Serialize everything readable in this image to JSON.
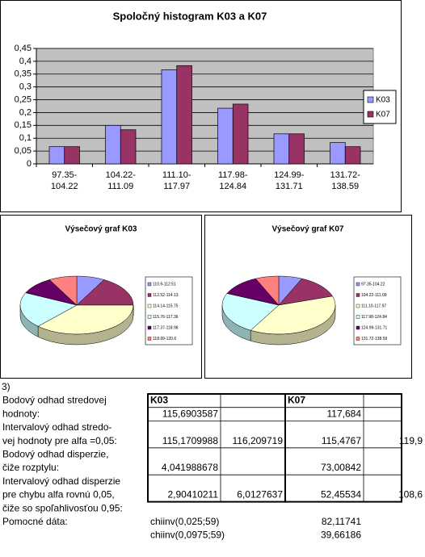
{
  "chart_data": [
    {
      "type": "bar",
      "title": "Spoločný histogram K03 a K07",
      "categories": [
        "97.35-104.22",
        "104.22-111.09",
        "111.10-117.97",
        "117.98-124.84",
        "124.99-131.71",
        "131.72-138.59"
      ],
      "series": [
        {
          "name": "K03",
          "color": "#9999ff",
          "values": [
            0.067,
            0.15,
            0.367,
            0.217,
            0.117,
            0.083
          ]
        },
        {
          "name": "K07",
          "color": "#993366",
          "values": [
            0.067,
            0.133,
            0.383,
            0.233,
            0.117,
            0.067
          ]
        }
      ],
      "ylim": [
        0,
        0.45
      ],
      "yticks": [
        0,
        {
          "value": 0.05,
          "label": "0,05"
        },
        {
          "value": 0.1,
          "label": "0,1"
        },
        {
          "value": 0.15,
          "label": "0,15"
        },
        {
          "value": 0.2,
          "label": "0,2"
        },
        {
          "value": 0.25,
          "label": "0,25"
        },
        {
          "value": 0.3,
          "label": "0,3"
        },
        {
          "value": 0.35,
          "label": "0,35"
        },
        {
          "value": 0.4,
          "label": "0,4"
        },
        {
          "value": 0.45,
          "label": "0,45"
        }
      ],
      "grid": true,
      "legend": "right",
      "plot_background": "#c0c0c0"
    },
    {
      "type": "pie",
      "title": "Výsečový graf K03",
      "categories": [
        "110.9-112.51",
        "112.52-114.13",
        "114.14-115.75",
        "115.76-117.36",
        "117.37-118.98",
        "118.99-120.6"
      ],
      "values": [
        8,
        17,
        37,
        20,
        10,
        8
      ],
      "colors": [
        "#9999ff",
        "#993366",
        "#ffffcc",
        "#ccffff",
        "#660066",
        "#ff8080"
      ],
      "legend": "right"
    },
    {
      "type": "pie",
      "title": "Výsečový graf K07",
      "categories": [
        "97.35-104.22",
        "104.22-111.09",
        "111.10-117.97",
        "117.98-124.84",
        "124.99-131.71",
        "131.72-138.59"
      ],
      "values": [
        6.7,
        13.3,
        38.3,
        23.3,
        11.7,
        6.7
      ],
      "colors": [
        "#9999ff",
        "#993366",
        "#ffffcc",
        "#ccffff",
        "#660066",
        "#ff8080"
      ],
      "legend": "right"
    }
  ],
  "sheet": {
    "label": "3)",
    "rows": [
      [
        "Bodový odhad stredovej",
        "K03",
        null,
        "K07",
        null
      ],
      [
        "hodnoty:",
        "115,6903587",
        null,
        "117,684",
        null
      ],
      [
        "Intervalový odhad stredo-",
        null,
        null,
        null,
        null
      ],
      [
        "vej hodnoty pre alfa =0,05:",
        "115,1709988",
        "116,209719",
        "115,4767",
        "119,9"
      ],
      [
        "Bodový odhad disperzie,",
        null,
        null,
        null,
        null
      ],
      [
        "čiže rozptylu:",
        "4,041988678",
        null,
        "73,00842",
        null
      ],
      [
        "Intervalový odhad disperzie",
        null,
        null,
        null,
        null
      ],
      [
        "pre chybu alfa rovnú 0,05,",
        "2,90410211",
        "6,0127637",
        "52,45534",
        "108,6"
      ],
      [
        "čiže so spoľahlivosťou 0,95:",
        null,
        null,
        null,
        null
      ],
      [
        "Pomocné dáta:",
        "chiinv(0,025;59)",
        null,
        "82,11741",
        null
      ],
      [
        null,
        "chiinv(0,0975;59)",
        null,
        "39,66186",
        null
      ]
    ]
  }
}
